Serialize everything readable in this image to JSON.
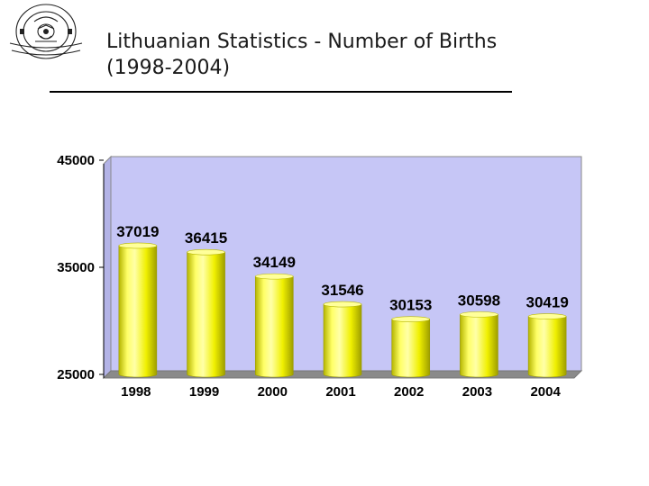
{
  "page": {
    "title": "Lithuanian Statistics - Number of Births\n(1998-2004)"
  },
  "logo": {
    "icon": "university-seal-icon"
  },
  "colors": {
    "plot_background": "#c6c6f6",
    "plot_floor": "#8a8a8a",
    "bar_fill": "#f2f200",
    "bar_highlight": "#ffff9a",
    "bar_shadow": "#a8a800"
  },
  "chart_data": {
    "type": "bar",
    "categories": [
      "1998",
      "1999",
      "2000",
      "2001",
      "2002",
      "2003",
      "2004"
    ],
    "values": [
      37019,
      36415,
      34149,
      31546,
      30153,
      30598,
      30419
    ],
    "data_labels": [
      "37019",
      "36415",
      "34149",
      "31546",
      "30153",
      "30598",
      "30419"
    ],
    "title": "",
    "xlabel": "",
    "ylabel": "",
    "ylim": [
      25000,
      45000
    ],
    "yticks": [
      25000,
      35000,
      45000
    ],
    "ytick_labels": [
      "25000",
      "35000",
      "45000"
    ],
    "grid": false,
    "legend": "none",
    "style": "3d-cylinder"
  }
}
